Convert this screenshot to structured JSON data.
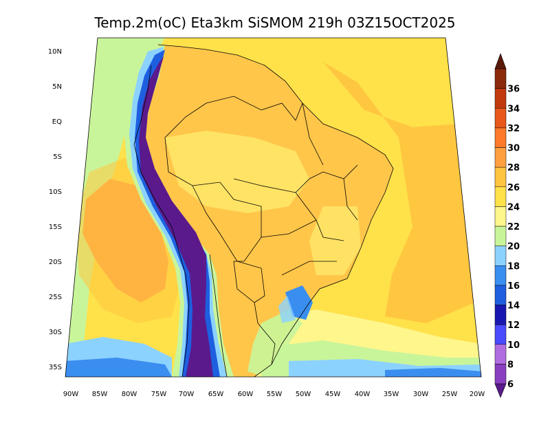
{
  "title": "Temp.2m(oC) Eta3km SiSMOM 219h 03Z15OCT2025",
  "lat_labels": [
    "10N",
    "5N",
    "EQ",
    "5S",
    "10S",
    "15S",
    "20S",
    "25S",
    "30S",
    "35S"
  ],
  "lon_labels": [
    "90W",
    "85W",
    "80W",
    "75W",
    "70W",
    "65W",
    "60W",
    "55W",
    "50W",
    "45W",
    "40W",
    "35W",
    "30W",
    "25W",
    "20W"
  ],
  "colorbar": {
    "labels": [
      "6",
      "8",
      "10",
      "12",
      "14",
      "16",
      "18",
      "20",
      "22",
      "24",
      "26",
      "28",
      "30",
      "32",
      "34",
      "36"
    ],
    "colors": [
      "#5a1a8c",
      "#8a3fc1",
      "#b06de0",
      "#4a4aff",
      "#1818b0",
      "#1e5fe0",
      "#3a8ef0",
      "#8cd2ff",
      "#c9f59a",
      "#fff68c",
      "#ffe14a",
      "#ffc440",
      "#ffa040",
      "#ff7a2a",
      "#e8581a",
      "#c03a0e",
      "#8a2a0a",
      "#5a1a08"
    ]
  },
  "palette": {
    "ocean_warm": "#ffc640",
    "ocean_orange": "#ff9e45",
    "ocean_mild": "#ffe14a",
    "ocean_cool": "#fff68c",
    "green": "#c9f59a",
    "lightblue": "#8cd2ff",
    "blue": "#3a8ef0",
    "deepblue": "#1e5fe0",
    "purple": "#5a1a8c",
    "land_base": "#ffc64a",
    "land_cool": "#ffe86a",
    "border": "#000000"
  }
}
